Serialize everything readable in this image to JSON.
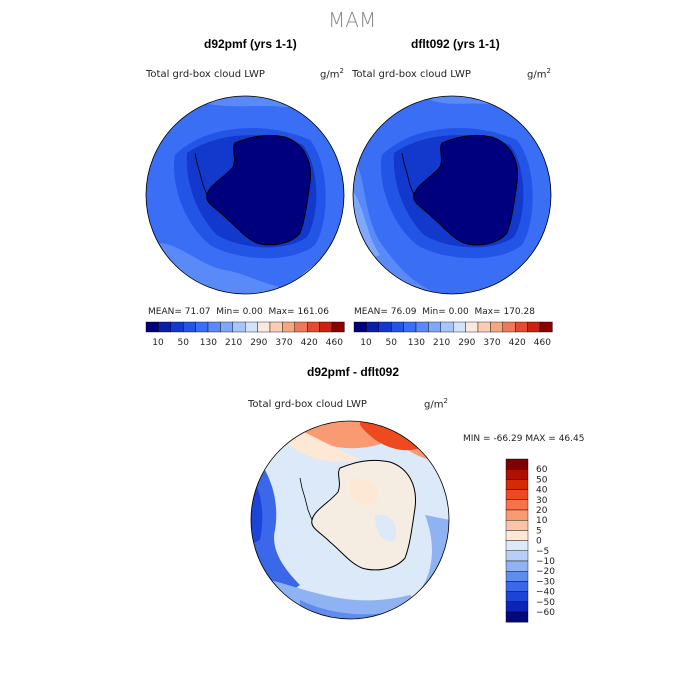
{
  "page_title": "MAM",
  "chart_data": [
    {
      "type": "heatmap",
      "projection": "south-polar-stereographic",
      "title": "d92pmf (yrs 1-1)",
      "variable": "Total grd-box cloud LWP",
      "units_base": "g/m",
      "units_exp": "2",
      "stats": {
        "mean_label": "MEAN=",
        "mean": "71.07",
        "min_label": "Min=",
        "min": "0.00",
        "max_label": "Max=",
        "max": "161.06"
      },
      "colorbar": {
        "orientation": "horizontal",
        "levels": [
          "10",
          "50",
          "130",
          "210",
          "290",
          "370",
          "420",
          "460"
        ],
        "colors": [
          "#00007f",
          "#0a1fa8",
          "#1238cc",
          "#2255e6",
          "#3a6ef5",
          "#5a8af7",
          "#7ea8f9",
          "#a6c6fb",
          "#d2e2fd",
          "#fbe9dc",
          "#fbcdb4",
          "#f7a684",
          "#f0785a",
          "#e54b30",
          "#c82412",
          "#8b0000"
        ]
      }
    },
    {
      "type": "heatmap",
      "projection": "south-polar-stereographic",
      "title": "dflt092 (yrs 1-1)",
      "variable": "Total grd-box cloud LWP",
      "units_base": "g/m",
      "units_exp": "2",
      "stats": {
        "mean_label": "MEAN=",
        "mean": "76.09",
        "min_label": "Min=",
        "min": "0.00",
        "max_label": "Max=",
        "max": "170.28"
      },
      "colorbar": {
        "orientation": "horizontal",
        "levels": [
          "10",
          "50",
          "130",
          "210",
          "290",
          "370",
          "420",
          "460"
        ],
        "colors": [
          "#00007f",
          "#0a1fa8",
          "#1238cc",
          "#2255e6",
          "#3a6ef5",
          "#5a8af7",
          "#7ea8f9",
          "#a6c6fb",
          "#d2e2fd",
          "#fbe9dc",
          "#fbcdb4",
          "#f7a684",
          "#f0785a",
          "#e54b30",
          "#c82412",
          "#8b0000"
        ]
      }
    },
    {
      "type": "heatmap",
      "projection": "south-polar-stereographic",
      "title": "d92pmf - dflt092",
      "variable": "Total grd-box cloud LWP",
      "units_base": "g/m",
      "units_exp": "2",
      "stats": {
        "min_label": "MIN =",
        "min": "-66.29",
        "max_label": "MAX =",
        "max": "46.45"
      },
      "colorbar": {
        "orientation": "vertical",
        "levels": [
          "60",
          "50",
          "40",
          "30",
          "20",
          "10",
          "5",
          "0",
          "−5",
          "−10",
          "−20",
          "−30",
          "−40",
          "−50",
          "−60"
        ],
        "colors": [
          "#7f0000",
          "#b01000",
          "#d42a08",
          "#ee4a20",
          "#f77248",
          "#fa9a72",
          "#fcc4a4",
          "#fde8d6",
          "#dce9f9",
          "#b7cff6",
          "#8eb2f2",
          "#5f8cee",
          "#3a68e8",
          "#1c44d8",
          "#0a24b8",
          "#00087f"
        ]
      }
    }
  ]
}
